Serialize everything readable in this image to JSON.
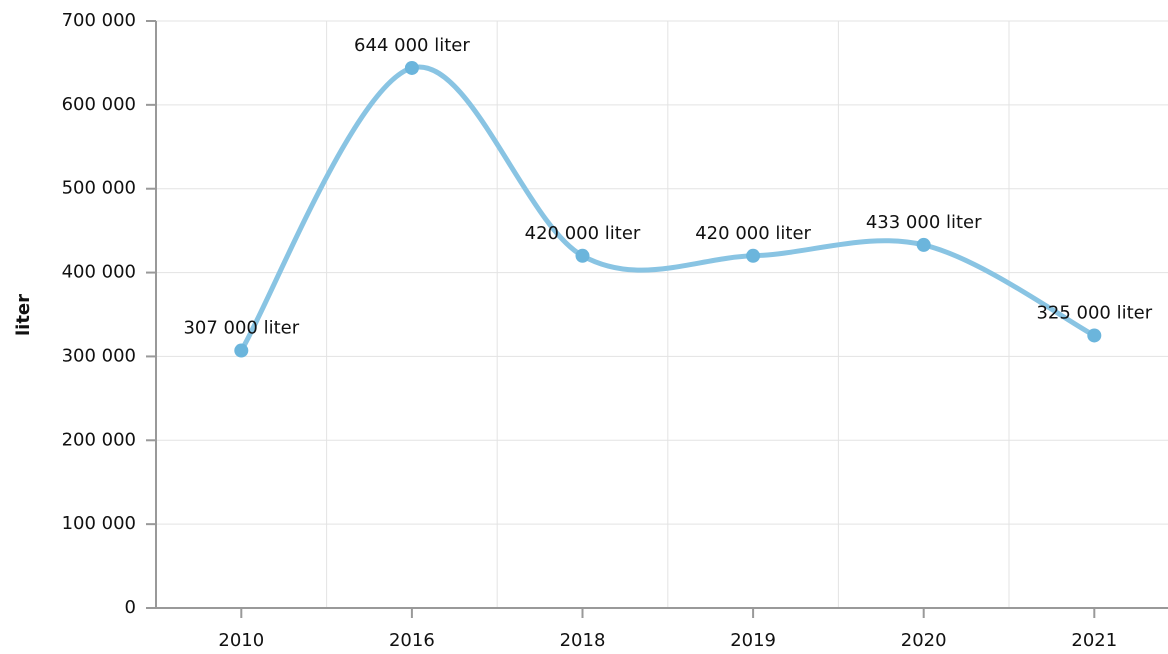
{
  "chart_data": {
    "type": "line",
    "y_label": "liter",
    "categories": [
      "2010",
      "2016",
      "2018",
      "2019",
      "2020",
      "2021"
    ],
    "series": [
      {
        "name": "liter",
        "color": "#89c4e3",
        "values": [
          307000,
          644000,
          420000,
          420000,
          433000,
          325000
        ],
        "value_labels": [
          "307 000 liter",
          "644 000 liter",
          "420 000 liter",
          "420 000 liter",
          "433 000 liter",
          "325 000 liter"
        ]
      }
    ],
    "ylim": [
      0,
      700000
    ],
    "yticks": [
      0,
      {
        "value": 100000,
        "label": "100 000"
      },
      {
        "value": 200000,
        "label": "200 000"
      },
      {
        "value": 300000,
        "label": "300 000"
      },
      {
        "value": 400000,
        "label": "400 000"
      },
      {
        "value": 500000,
        "label": "500 000"
      },
      {
        "value": 600000,
        "label": "600 000"
      },
      {
        "value": 700000,
        "label": "700 000"
      }
    ],
    "grid": true
  }
}
